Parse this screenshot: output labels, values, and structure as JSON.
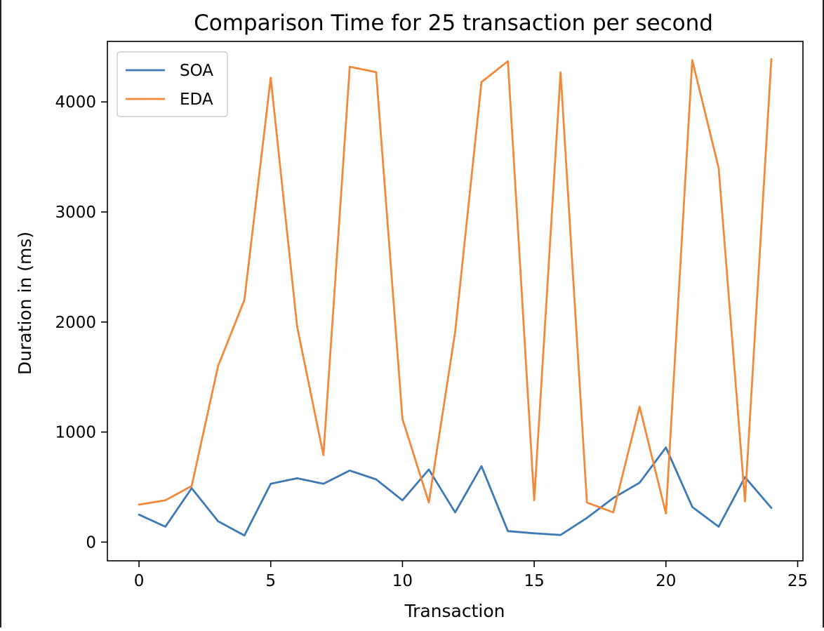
{
  "chart_data": {
    "type": "line",
    "title": "Comparison Time for 25 transaction per second",
    "xlabel": "Transaction",
    "ylabel": "Duration in (ms)",
    "xlim": [
      -1.2,
      25.2
    ],
    "ylim": [
      -170,
      4550
    ],
    "xticks": [
      0,
      5,
      10,
      15,
      20,
      25
    ],
    "yticks": [
      0,
      1000,
      2000,
      3000,
      4000
    ],
    "xtick_labels": [
      "0",
      "5",
      "10",
      "15",
      "20",
      "25"
    ],
    "ytick_labels": [
      "0",
      "1000",
      "2000",
      "3000",
      "4000"
    ],
    "grid": false,
    "legend_position": "upper-left",
    "x": [
      0,
      1,
      2,
      3,
      4,
      5,
      6,
      7,
      8,
      9,
      10,
      11,
      12,
      13,
      14,
      15,
      16,
      17,
      18,
      19,
      20,
      21,
      22,
      23,
      24
    ],
    "series": [
      {
        "name": "SOA",
        "color": "#3d7ab5",
        "values": [
          250,
          140,
          490,
          190,
          60,
          530,
          580,
          530,
          650,
          570,
          380,
          660,
          270,
          690,
          100,
          80,
          65,
          220,
          400,
          540,
          860,
          320,
          140,
          590,
          310
        ]
      },
      {
        "name": "EDA",
        "color": "#f2893a",
        "values": [
          340,
          380,
          510,
          1600,
          2200,
          4220,
          1960,
          790,
          4320,
          4270,
          1120,
          360,
          1910,
          4180,
          4370,
          380,
          4270,
          360,
          270,
          1230,
          260,
          4380,
          3400,
          370,
          4390
        ]
      }
    ]
  }
}
